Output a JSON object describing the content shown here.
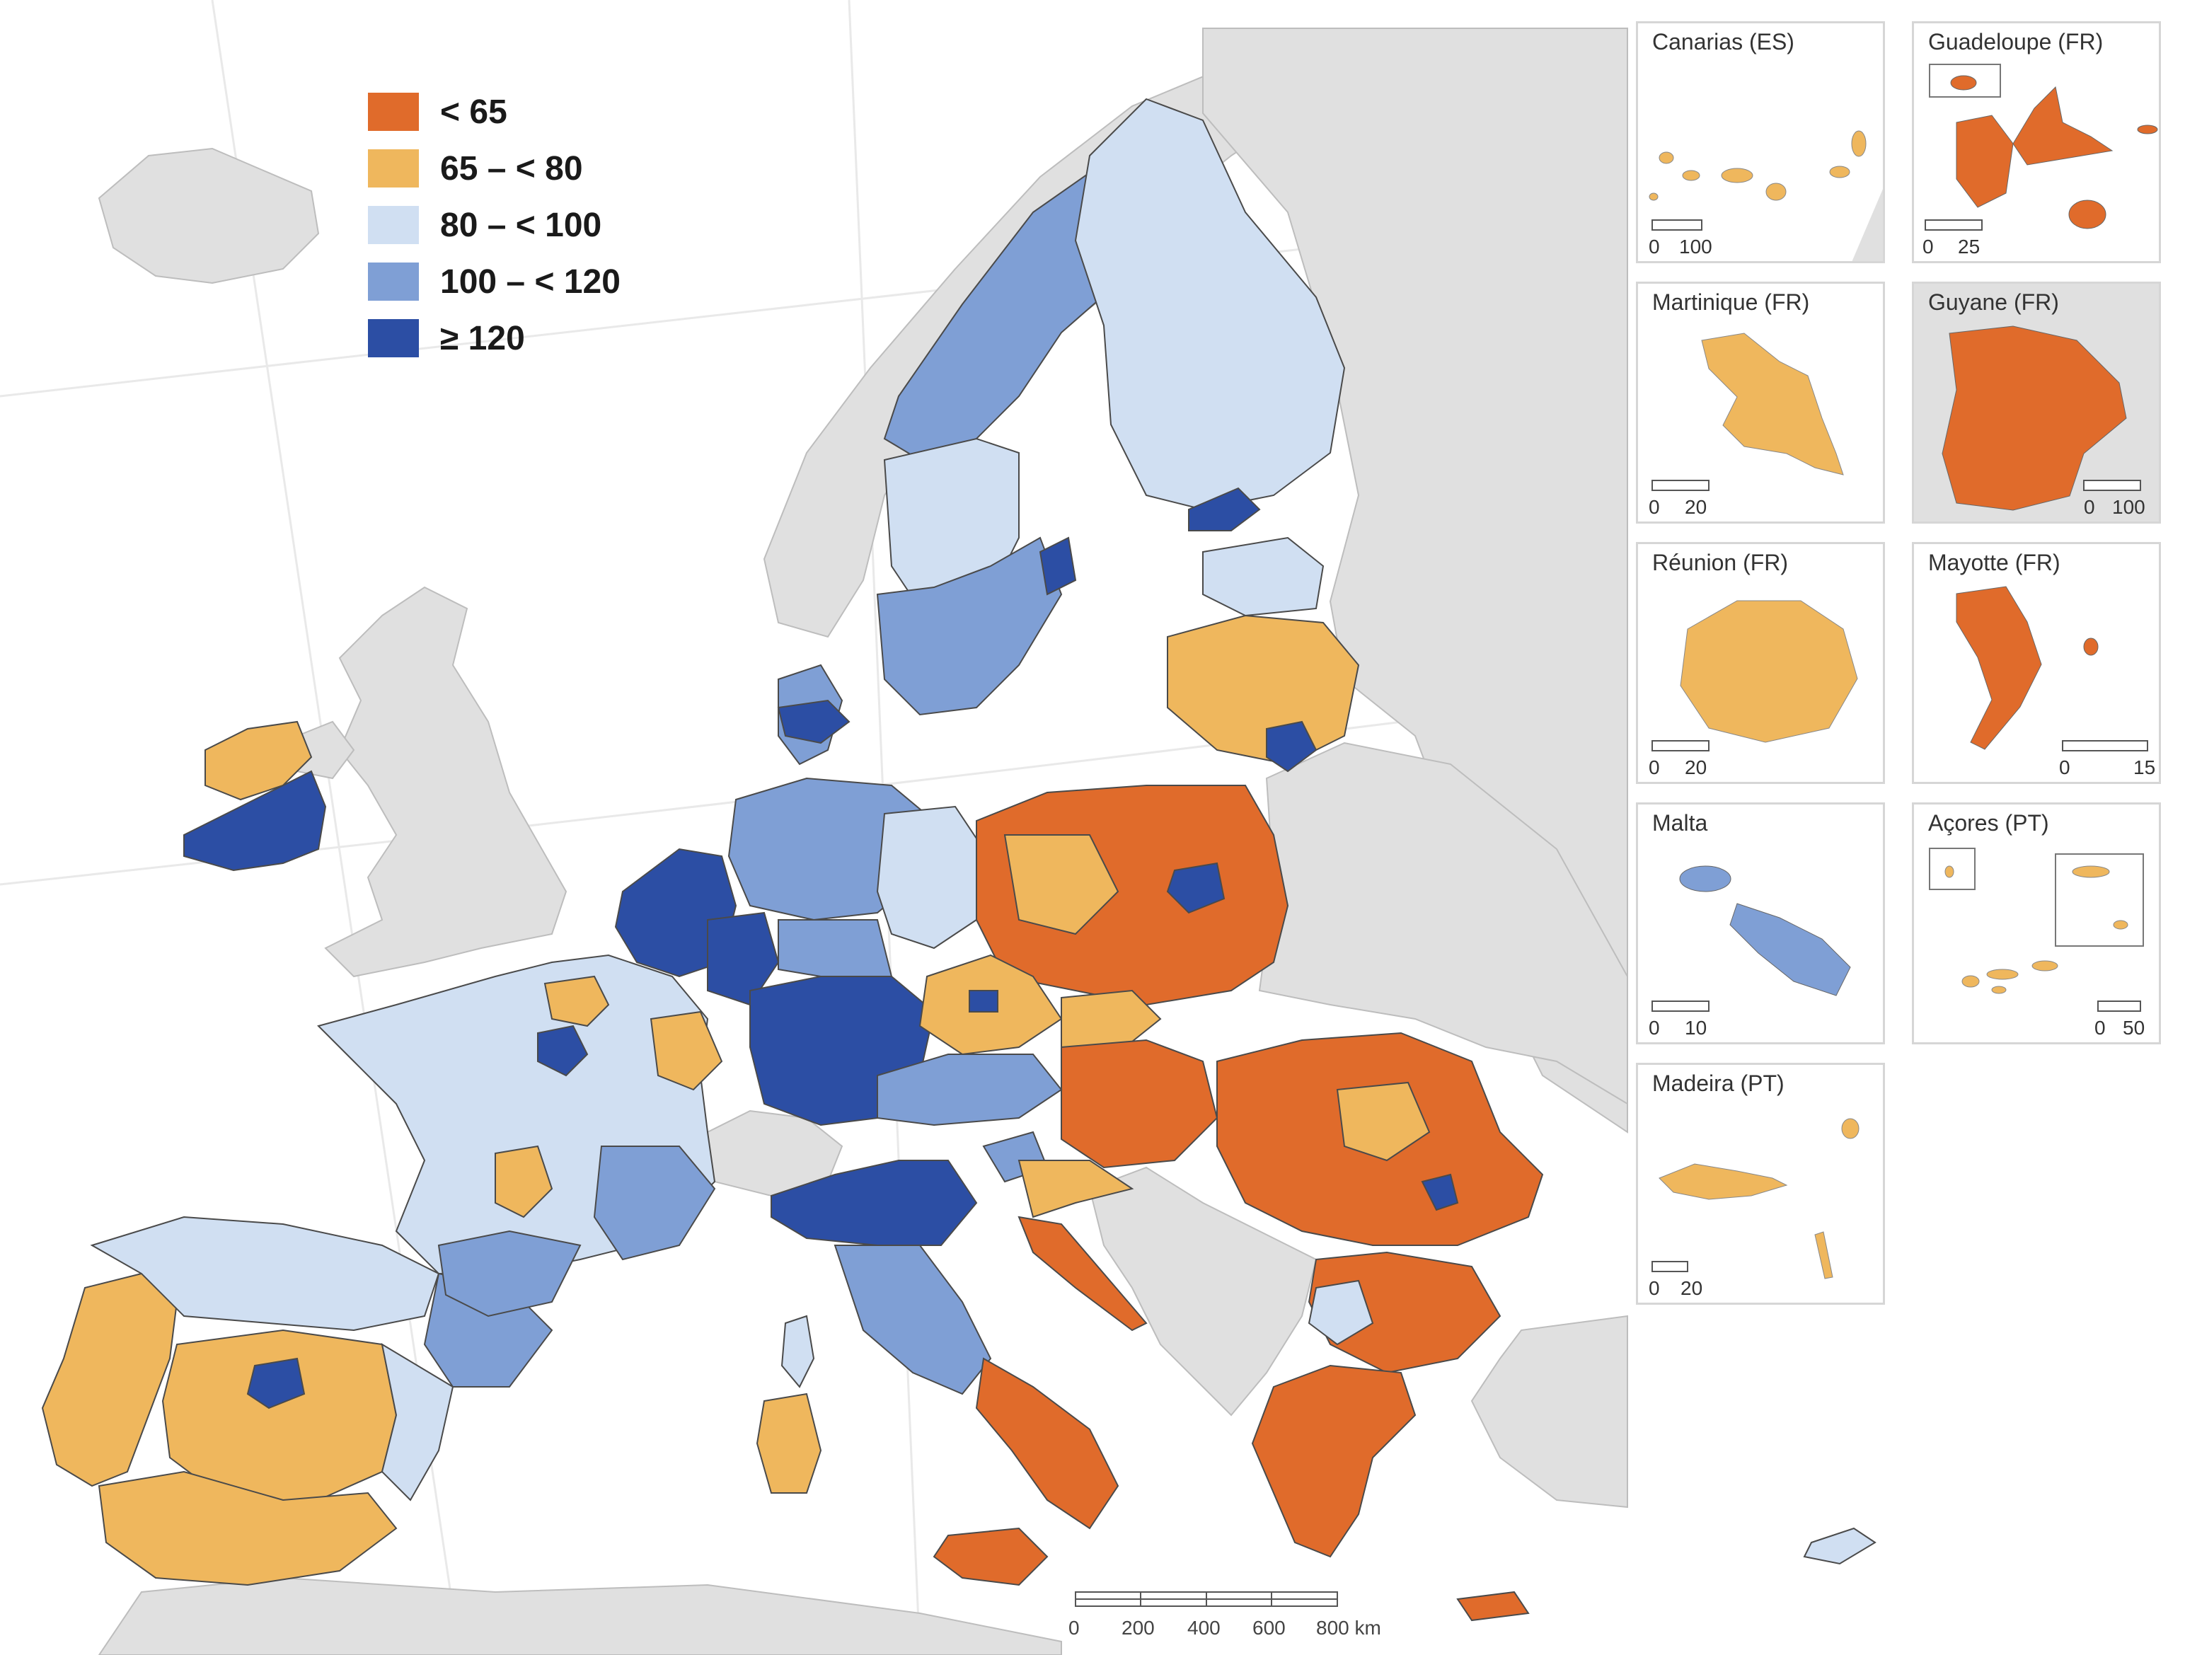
{
  "colors": {
    "sea": "#ffffff",
    "land": "#e0e0e0",
    "border": "#4a4a4a",
    "c1": "#e06b2b",
    "c2": "#efb75d",
    "c3": "#d0dff2",
    "c4": "#7f9fd5",
    "c5": "#2c4ea4"
  },
  "legend": [
    {
      "label": "< 65",
      "color": "#e06b2b"
    },
    {
      "label": "65 – < 80",
      "color": "#efb75d"
    },
    {
      "label": "80 – < 100",
      "color": "#d0dff2"
    },
    {
      "label": "100 – < 120",
      "color": "#7f9fd5"
    },
    {
      "label": "≥ 120",
      "color": "#2c4ea4"
    }
  ],
  "scale_bar": {
    "ticks": [
      "0",
      "200",
      "400",
      "600",
      "800 km"
    ]
  },
  "insets": [
    {
      "title": "Canarias (ES)",
      "scale": [
        "0",
        "100"
      ],
      "fill": "#efb75d"
    },
    {
      "title": "Guadeloupe (FR)",
      "scale": [
        "0",
        "25"
      ],
      "fill": "#e06b2b"
    },
    {
      "title": "Martinique (FR)",
      "scale": [
        "0",
        "20"
      ],
      "fill": "#efb75d"
    },
    {
      "title": "Guyane (FR)",
      "scale": [
        "0",
        "100"
      ],
      "fill": "#e06b2b"
    },
    {
      "title": "Réunion (FR)",
      "scale": [
        "0",
        "20"
      ],
      "fill": "#efb75d"
    },
    {
      "title": "Mayotte (FR)",
      "scale": [
        "0",
        "15"
      ],
      "fill": "#e06b2b"
    },
    {
      "title": "Malta",
      "scale": [
        "0",
        "10"
      ],
      "fill": "#7f9fd5"
    },
    {
      "title": "Açores (PT)",
      "scale": [
        "0",
        "50"
      ],
      "fill": "#efb75d"
    },
    {
      "title": "Madeira (PT)",
      "scale": [
        "0",
        "20"
      ],
      "fill": "#efb75d"
    }
  ]
}
